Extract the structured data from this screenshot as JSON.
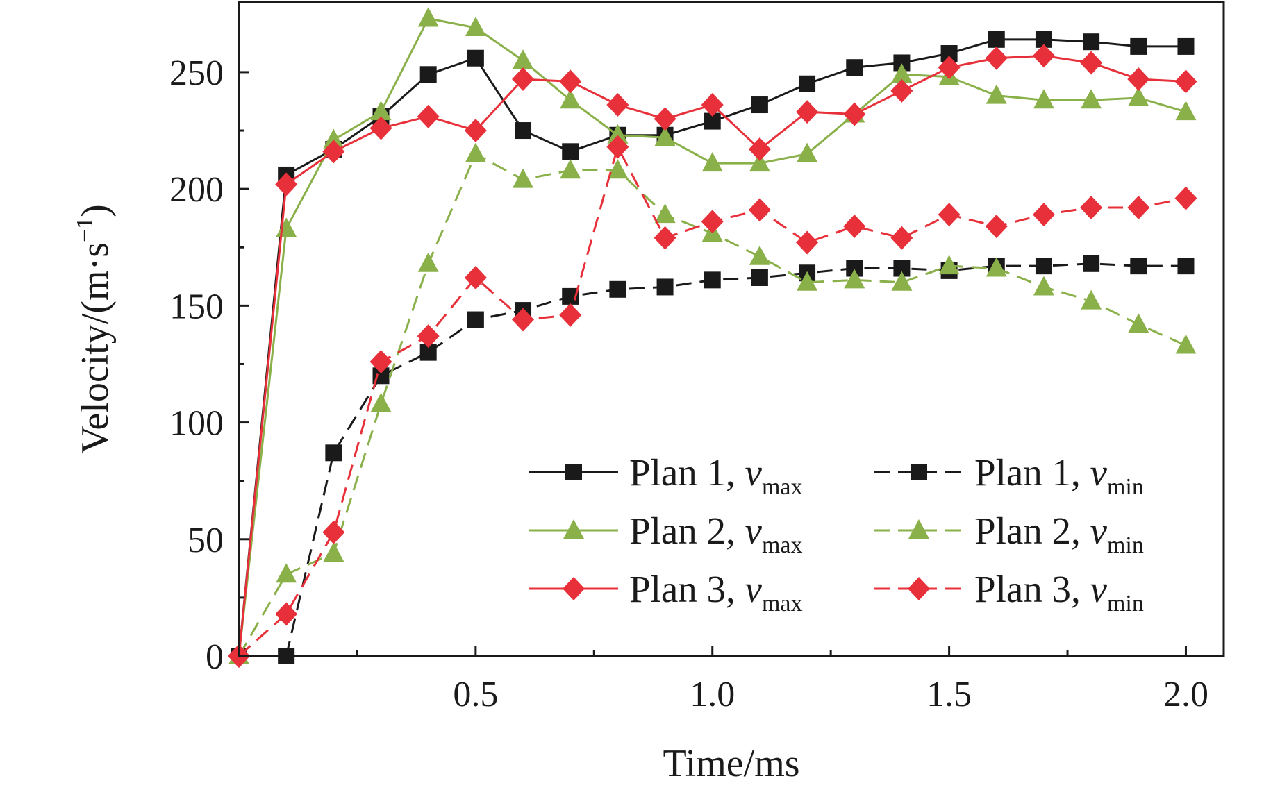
{
  "chart_data": {
    "type": "line",
    "xlabel": "Time/ms",
    "ylabel": "Velocity/(m·s−1)",
    "ylabel_parts": {
      "base": "Velocity/(m·s",
      "sup": "−1",
      "close": ")"
    },
    "xlim": [
      0,
      2.08
    ],
    "ylim": [
      0,
      280
    ],
    "xticks": [
      0.5,
      1.0,
      1.5,
      2.0
    ],
    "xtick_labels": [
      "0.5",
      "1.0",
      "1.5",
      "2.0"
    ],
    "yticks": [
      0,
      50,
      100,
      150,
      200,
      250
    ],
    "ytick_labels": [
      "0",
      "50",
      "100",
      "150",
      "200",
      "250"
    ],
    "grid": false,
    "legend_position": "bottom-right",
    "series": [
      {
        "name": "Plan 1, vmax",
        "plan": "Plan 1, ",
        "var": "v",
        "sub": "max",
        "color": "#1a1a1a",
        "marker": "square",
        "dashed": false,
        "x": [
          0,
          0.1,
          0.2,
          0.3,
          0.4,
          0.5,
          0.6,
          0.7,
          0.8,
          0.9,
          1.0,
          1.1,
          1.2,
          1.3,
          1.4,
          1.5,
          1.6,
          1.7,
          1.8,
          1.9,
          2.0
        ],
        "y": [
          0,
          206,
          217,
          231,
          249,
          256,
          225,
          216,
          223,
          223,
          229,
          236,
          245,
          252,
          254,
          258,
          264,
          264,
          263,
          261,
          261
        ]
      },
      {
        "name": "Plan 1, vmin",
        "plan": "Plan 1, ",
        "var": "v",
        "sub": "min",
        "color": "#1a1a1a",
        "marker": "square",
        "dashed": true,
        "x": [
          0,
          0.1,
          0.2,
          0.3,
          0.4,
          0.5,
          0.6,
          0.7,
          0.8,
          0.9,
          1.0,
          1.1,
          1.2,
          1.3,
          1.4,
          1.5,
          1.6,
          1.7,
          1.8,
          1.9,
          2.0
        ],
        "y": [
          0,
          0,
          87,
          120,
          130,
          144,
          148,
          154,
          157,
          158,
          161,
          162,
          164,
          166,
          166,
          165,
          167,
          167,
          168,
          167,
          167
        ]
      },
      {
        "name": "Plan 2, vmax",
        "plan": "Plan 2, ",
        "var": "v",
        "sub": "max",
        "color": "#8ab04a",
        "marker": "triangle",
        "dashed": false,
        "x": [
          0,
          0.1,
          0.2,
          0.3,
          0.4,
          0.5,
          0.6,
          0.7,
          0.8,
          0.9,
          1.0,
          1.1,
          1.2,
          1.3,
          1.4,
          1.5,
          1.6,
          1.7,
          1.8,
          1.9,
          2.0
        ],
        "y": [
          0,
          183,
          221,
          233,
          273,
          269,
          255,
          238,
          223,
          222,
          211,
          211,
          215,
          232,
          249,
          248,
          240,
          238,
          238,
          239,
          233
        ]
      },
      {
        "name": "Plan 2, vmin",
        "plan": "Plan 2, ",
        "var": "v",
        "sub": "min",
        "color": "#8ab04a",
        "marker": "triangle",
        "dashed": true,
        "x": [
          0,
          0.1,
          0.2,
          0.3,
          0.4,
          0.5,
          0.6,
          0.7,
          0.8,
          0.9,
          1.0,
          1.1,
          1.2,
          1.3,
          1.4,
          1.5,
          1.6,
          1.7,
          1.8,
          1.9,
          2.0
        ],
        "y": [
          0,
          35,
          44,
          108,
          168,
          215,
          204,
          208,
          208,
          189,
          181,
          171,
          160,
          161,
          160,
          167,
          166,
          158,
          152,
          142,
          133
        ]
      },
      {
        "name": "Plan 3, vmax",
        "plan": "Plan 3, ",
        "var": "v",
        "sub": "max",
        "color": "#e8303a",
        "marker": "diamond",
        "dashed": false,
        "x": [
          0,
          0.1,
          0.2,
          0.3,
          0.4,
          0.5,
          0.6,
          0.7,
          0.8,
          0.9,
          1.0,
          1.1,
          1.2,
          1.3,
          1.4,
          1.5,
          1.6,
          1.7,
          1.8,
          1.9,
          2.0
        ],
        "y": [
          0,
          202,
          216,
          226,
          231,
          225,
          247,
          246,
          236,
          230,
          236,
          217,
          233,
          232,
          242,
          252,
          256,
          257,
          254,
          247,
          246
        ]
      },
      {
        "name": "Plan 3, vmin",
        "plan": "Plan 3, ",
        "var": "v",
        "sub": "min",
        "color": "#e8303a",
        "marker": "diamond",
        "dashed": true,
        "x": [
          0,
          0.1,
          0.2,
          0.3,
          0.4,
          0.5,
          0.6,
          0.7,
          0.8,
          0.9,
          1.0,
          1.1,
          1.2,
          1.3,
          1.4,
          1.5,
          1.6,
          1.7,
          1.8,
          1.9,
          2.0
        ],
        "y": [
          0,
          18,
          53,
          126,
          137,
          162,
          144,
          146,
          218,
          179,
          186,
          191,
          177,
          184,
          179,
          189,
          184,
          189,
          192,
          192,
          196
        ]
      }
    ]
  }
}
